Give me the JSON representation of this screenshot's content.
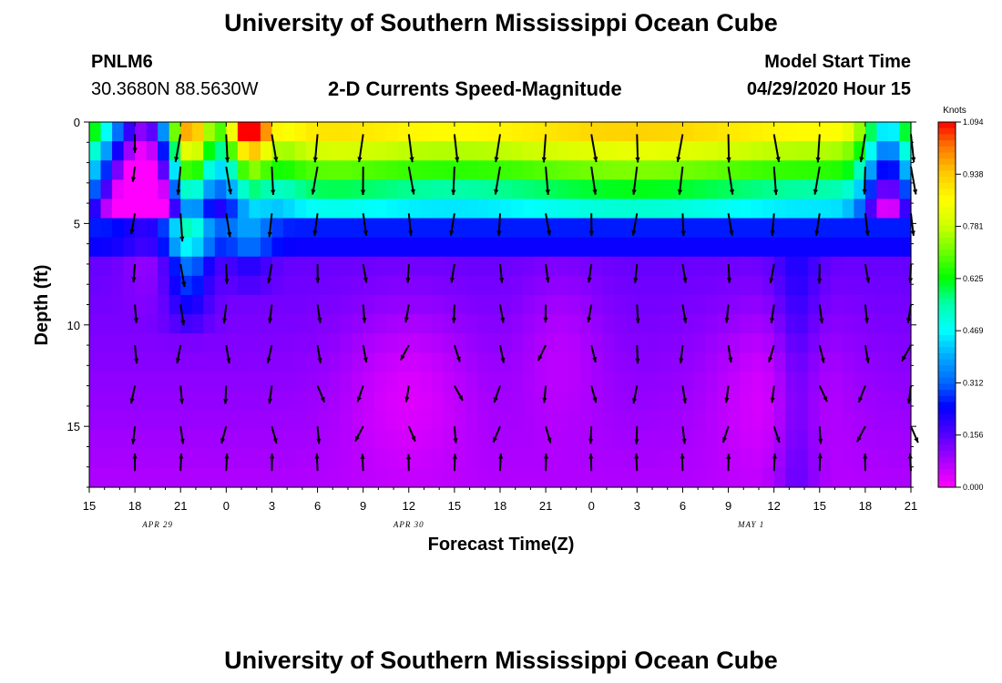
{
  "page": {
    "title_top": "University of Southern Mississippi Ocean Cube",
    "title_bottom": "University of Southern Mississippi Ocean Cube",
    "station_id": "PNLM6",
    "coordinates": "30.3680N 88.5630W",
    "plot_title": "2-D Currents Speed-Magnitude",
    "model_start_label": "Model Start Time",
    "model_start_value": "04/29/2020 Hour 15"
  },
  "chart_data": {
    "type": "heatmap",
    "title": "2-D Currents Speed-Magnitude",
    "xlabel": "Forecast Time(Z)",
    "ylabel": "Depth (ft)",
    "x_range_hours": [
      0,
      54
    ],
    "x_start": "04/29/2020 15Z",
    "x_ticks": [
      "15",
      "18",
      "21",
      "0",
      "3",
      "6",
      "9",
      "12",
      "15",
      "18",
      "21",
      "0",
      "3",
      "6",
      "9",
      "12",
      "15",
      "18",
      "21"
    ],
    "date_labels": [
      {
        "text": "APR 29",
        "hour": 4.5
      },
      {
        "text": "APR 30",
        "hour": 21
      },
      {
        "text": "MAY 1",
        "hour": 43.5
      }
    ],
    "y_range_ft": [
      0,
      18
    ],
    "y_ticks": [
      0,
      5,
      10,
      15
    ],
    "colorbar": {
      "title": "Knots",
      "ticks": [
        "1.094",
        "0.938",
        "0.781",
        "0.625",
        "0.469",
        "0.312",
        "0.156",
        "0.000"
      ],
      "min": 0.0,
      "max": 1.094
    },
    "vector_hours": [
      3,
      6,
      9,
      12,
      15,
      18,
      21,
      24,
      27,
      30,
      33,
      36,
      39,
      42,
      45,
      48,
      51,
      54
    ],
    "vector_depths_ft": [
      0.6,
      2.2,
      4.5,
      7.0,
      9.0,
      11.0,
      13.0,
      15.0,
      17.2
    ],
    "colormap": [
      {
        "v": 0.0,
        "c": "#ff00ff"
      },
      {
        "v": 0.08,
        "c": "#aa00ff"
      },
      {
        "v": 0.156,
        "c": "#5500ff"
      },
      {
        "v": 0.24,
        "c": "#0000ff"
      },
      {
        "v": 0.312,
        "c": "#0066ff"
      },
      {
        "v": 0.39,
        "c": "#00aaff"
      },
      {
        "v": 0.469,
        "c": "#00ffff"
      },
      {
        "v": 0.55,
        "c": "#00ffaa"
      },
      {
        "v": 0.625,
        "c": "#00ff00"
      },
      {
        "v": 0.7,
        "c": "#66ff00"
      },
      {
        "v": 0.781,
        "c": "#ccff00"
      },
      {
        "v": 0.86,
        "c": "#ffff00"
      },
      {
        "v": 0.938,
        "c": "#ffcc00"
      },
      {
        "v": 1.02,
        "c": "#ff7700"
      },
      {
        "v": 1.094,
        "c": "#ff0000"
      }
    ]
  }
}
